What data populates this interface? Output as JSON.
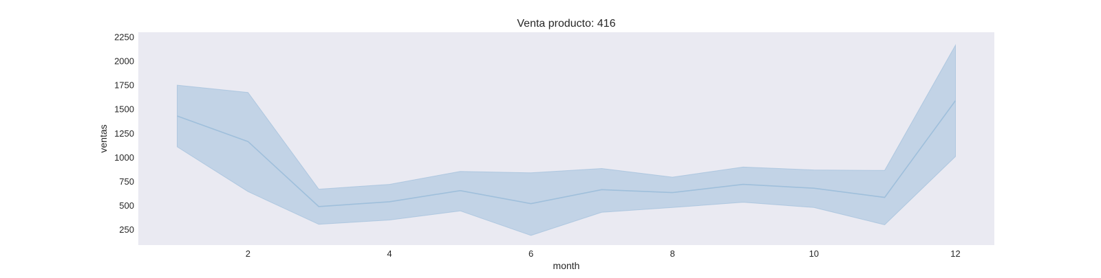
{
  "chart_data": {
    "type": "line",
    "title": "Venta producto: 416",
    "xlabel": "month",
    "ylabel": "ventas",
    "xlim": [
      0.45,
      12.55
    ],
    "ylim": [
      90,
      2300
    ],
    "xticks": [
      2,
      4,
      6,
      8,
      10,
      12
    ],
    "yticks": [
      250,
      500,
      750,
      1000,
      1250,
      1500,
      1750,
      2000,
      2250
    ],
    "grid": false,
    "legend": "none",
    "colors": {
      "plot_background": "#eaeaf2",
      "line": "#9fbfdb",
      "band": "#b4cbe2"
    },
    "series": [
      {
        "x": [
          1,
          2,
          3,
          4,
          5,
          6,
          7,
          8,
          9,
          10,
          11,
          12
        ],
        "y": [
          1430,
          1165,
          490,
          540,
          655,
          520,
          665,
          635,
          720,
          680,
          585,
          1590
        ],
        "lower": [
          1110,
          645,
          305,
          350,
          445,
          190,
          430,
          480,
          535,
          480,
          300,
          1010
        ],
        "upper": [
          1750,
          1675,
          670,
          720,
          855,
          840,
          885,
          795,
          900,
          870,
          865,
          2165
        ]
      }
    ]
  }
}
